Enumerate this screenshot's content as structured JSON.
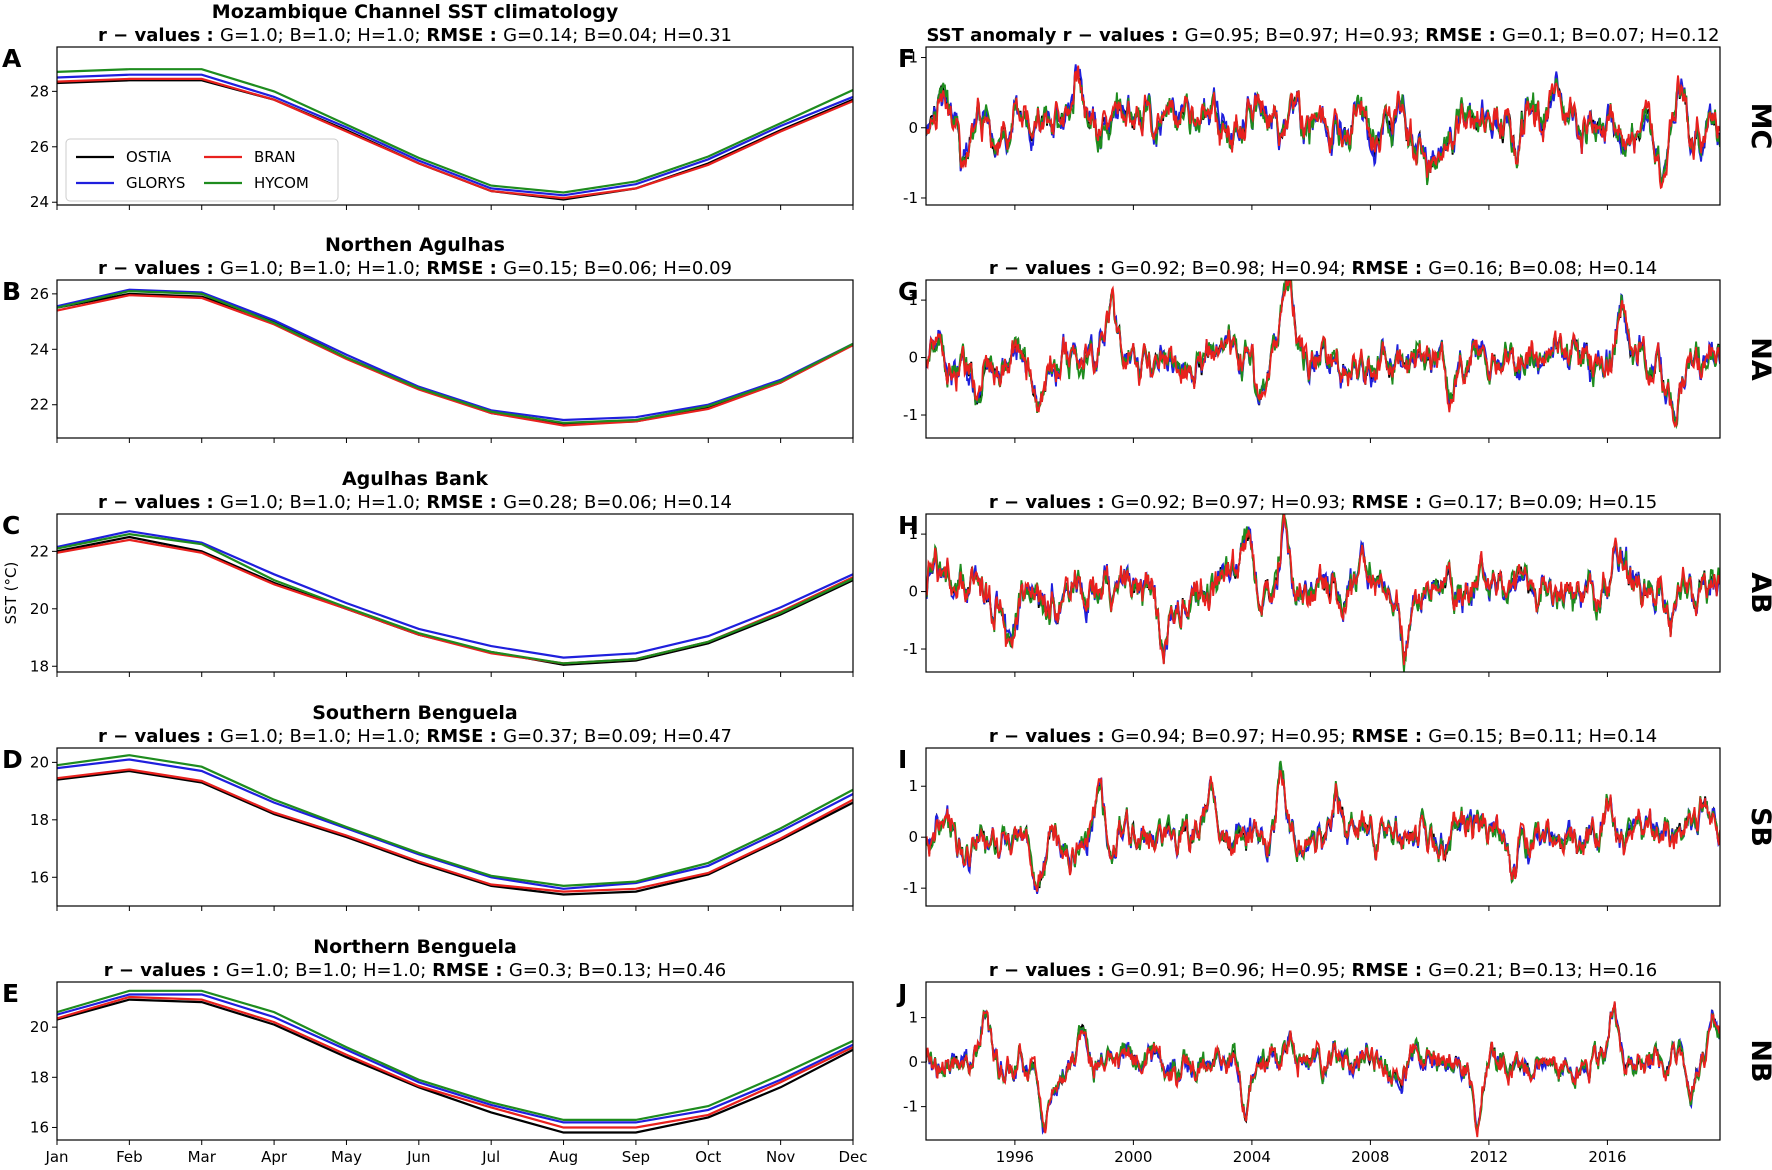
{
  "colors": {
    "OSTIA": "#000000",
    "GLORYS": "#1f1fdd",
    "BRAN": "#e8211e",
    "HYCOM": "#1e8c1e"
  },
  "y_axis_label": "SST (°C)",
  "legend": [
    {
      "name": "OSTIA",
      "color": "#000000"
    },
    {
      "name": "BRAN",
      "color": "#e8211e"
    },
    {
      "name": "GLORYS",
      "color": "#1f1fdd"
    },
    {
      "name": "HYCOM",
      "color": "#1e8c1e"
    }
  ],
  "chart_data": [
    {
      "type": "line",
      "letter": "A",
      "title": "Mozambique Channel SST climatology",
      "stats": {
        "r_label": "r − values :",
        "r_text": "G=1.0; B=1.0; H=1.0;",
        "rmse_label": "RMSE :",
        "rmse_text": "G=0.14; B=0.04; H=0.31"
      },
      "categories": [
        "Jan",
        "Feb",
        "Mar",
        "Apr",
        "May",
        "Jun",
        "Jul",
        "Aug",
        "Sep",
        "Oct",
        "Nov",
        "Dec"
      ],
      "ylim": [
        23.9,
        29.6
      ],
      "yticks": [
        24,
        26,
        28
      ],
      "series": [
        {
          "name": "OSTIA",
          "values": [
            28.3,
            28.4,
            28.4,
            27.7,
            26.6,
            25.4,
            24.4,
            24.1,
            24.5,
            25.4,
            26.6,
            27.7
          ]
        },
        {
          "name": "BRAN",
          "values": [
            28.35,
            28.45,
            28.45,
            27.7,
            26.55,
            25.4,
            24.4,
            24.15,
            24.5,
            25.35,
            26.55,
            27.65
          ]
        },
        {
          "name": "GLORYS",
          "values": [
            28.5,
            28.6,
            28.6,
            27.8,
            26.7,
            25.5,
            24.5,
            24.25,
            24.65,
            25.55,
            26.75,
            27.8
          ]
        },
        {
          "name": "HYCOM",
          "values": [
            28.7,
            28.8,
            28.8,
            28.0,
            26.8,
            25.6,
            24.6,
            24.35,
            24.75,
            25.65,
            26.85,
            28.05
          ]
        }
      ]
    },
    {
      "type": "line",
      "letter": "B",
      "title": "Northen Agulhas",
      "stats": {
        "r_label": "r − values :",
        "r_text": "G=1.0; B=1.0; H=1.0;",
        "rmse_label": "RMSE :",
        "rmse_text": "G=0.15; B=0.06; H=0.09"
      },
      "categories": [
        "Jan",
        "Feb",
        "Mar",
        "Apr",
        "May",
        "Jun",
        "Jul",
        "Aug",
        "Sep",
        "Oct",
        "Nov",
        "Dec"
      ],
      "ylim": [
        20.8,
        26.5
      ],
      "yticks": [
        22,
        24,
        26
      ],
      "series": [
        {
          "name": "OSTIA",
          "values": [
            25.5,
            26.0,
            25.9,
            25.0,
            23.7,
            22.6,
            21.7,
            21.3,
            21.4,
            21.9,
            22.8,
            24.2
          ]
        },
        {
          "name": "BRAN",
          "values": [
            25.4,
            25.95,
            25.85,
            24.9,
            23.65,
            22.55,
            21.7,
            21.25,
            21.4,
            21.85,
            22.8,
            24.15
          ]
        },
        {
          "name": "GLORYS",
          "values": [
            25.55,
            26.15,
            26.05,
            25.05,
            23.8,
            22.65,
            21.8,
            21.45,
            21.55,
            22.0,
            22.9,
            24.2
          ]
        },
        {
          "name": "HYCOM",
          "values": [
            25.5,
            26.1,
            26.0,
            24.95,
            23.7,
            22.6,
            21.75,
            21.35,
            21.45,
            21.95,
            22.85,
            24.2
          ]
        }
      ]
    },
    {
      "type": "line",
      "letter": "C",
      "title": "Agulhas Bank",
      "stats": {
        "r_label": "r − values :",
        "r_text": "G=1.0; B=1.0; H=1.0;",
        "rmse_label": "RMSE :",
        "rmse_text": "G=0.28; B=0.06; H=0.14"
      },
      "categories": [
        "Jan",
        "Feb",
        "Mar",
        "Apr",
        "May",
        "Jun",
        "Jul",
        "Aug",
        "Sep",
        "Oct",
        "Nov",
        "Dec"
      ],
      "ylim": [
        17.8,
        23.3
      ],
      "yticks": [
        18,
        20,
        22
      ],
      "series": [
        {
          "name": "OSTIA",
          "values": [
            22.0,
            22.5,
            22.0,
            20.9,
            20.0,
            19.1,
            18.5,
            18.05,
            18.2,
            18.8,
            19.8,
            21.0
          ]
        },
        {
          "name": "BRAN",
          "values": [
            21.95,
            22.4,
            21.95,
            20.85,
            20.0,
            19.1,
            18.45,
            18.1,
            18.25,
            18.85,
            19.9,
            21.1
          ]
        },
        {
          "name": "GLORYS",
          "values": [
            22.15,
            22.7,
            22.3,
            21.2,
            20.2,
            19.3,
            18.7,
            18.3,
            18.45,
            19.05,
            20.05,
            21.2
          ]
        },
        {
          "name": "HYCOM",
          "values": [
            22.1,
            22.6,
            22.25,
            21.0,
            20.05,
            19.15,
            18.5,
            18.1,
            18.25,
            18.85,
            19.85,
            21.05
          ]
        }
      ]
    },
    {
      "type": "line",
      "letter": "D",
      "title": "Southern Benguela",
      "stats": {
        "r_label": "r − values :",
        "r_text": "G=1.0; B=1.0; H=1.0;",
        "rmse_label": "RMSE :",
        "rmse_text": "G=0.37; B=0.09; H=0.47"
      },
      "categories": [
        "Jan",
        "Feb",
        "Mar",
        "Apr",
        "May",
        "Jun",
        "Jul",
        "Aug",
        "Sep",
        "Oct",
        "Nov",
        "Dec"
      ],
      "ylim": [
        15.0,
        20.5
      ],
      "yticks": [
        16,
        18,
        20
      ],
      "series": [
        {
          "name": "OSTIA",
          "values": [
            19.4,
            19.7,
            19.3,
            18.2,
            17.4,
            16.5,
            15.7,
            15.4,
            15.5,
            16.1,
            17.3,
            18.6
          ]
        },
        {
          "name": "BRAN",
          "values": [
            19.45,
            19.75,
            19.35,
            18.25,
            17.45,
            16.55,
            15.75,
            15.5,
            15.6,
            16.15,
            17.35,
            18.7
          ]
        },
        {
          "name": "GLORYS",
          "values": [
            19.8,
            20.1,
            19.7,
            18.6,
            17.7,
            16.8,
            16.0,
            15.6,
            15.8,
            16.4,
            17.6,
            18.9
          ]
        },
        {
          "name": "HYCOM",
          "values": [
            19.9,
            20.25,
            19.85,
            18.7,
            17.75,
            16.85,
            16.05,
            15.7,
            15.85,
            16.5,
            17.7,
            19.05
          ]
        }
      ]
    },
    {
      "type": "line",
      "letter": "E",
      "title": "Northern Benguela",
      "stats": {
        "r_label": "r − values :",
        "r_text": "G=1.0; B=1.0; H=1.0;",
        "rmse_label": "RMSE :",
        "rmse_text": "G=0.3; B=0.13; H=0.46"
      },
      "categories": [
        "Jan",
        "Feb",
        "Mar",
        "Apr",
        "May",
        "Jun",
        "Jul",
        "Aug",
        "Sep",
        "Oct",
        "Nov",
        "Dec"
      ],
      "ylim": [
        15.5,
        21.8
      ],
      "yticks": [
        16,
        18,
        20
      ],
      "series": [
        {
          "name": "OSTIA",
          "values": [
            20.3,
            21.1,
            21.0,
            20.1,
            18.8,
            17.6,
            16.6,
            15.8,
            15.8,
            16.4,
            17.6,
            19.1
          ]
        },
        {
          "name": "BRAN",
          "values": [
            20.35,
            21.2,
            21.1,
            20.2,
            18.9,
            17.65,
            16.8,
            16.0,
            16.0,
            16.5,
            17.8,
            19.2
          ]
        },
        {
          "name": "GLORYS",
          "values": [
            20.5,
            21.3,
            21.3,
            20.4,
            19.1,
            17.8,
            16.9,
            16.2,
            16.2,
            16.7,
            17.9,
            19.3
          ]
        },
        {
          "name": "HYCOM",
          "values": [
            20.6,
            21.45,
            21.45,
            20.6,
            19.2,
            17.9,
            17.0,
            16.3,
            16.3,
            16.85,
            18.1,
            19.45
          ]
        }
      ]
    },
    {
      "type": "line",
      "letter": "F",
      "region": "MC",
      "title_bold": "SST anomaly r − values :",
      "stats": {
        "r_text": "G=0.95; B=0.97; H=0.93;",
        "rmse_label": "RMSE :",
        "rmse_text": "G=0.1; B=0.07; H=0.12"
      },
      "xlim": [
        1993.0,
        2019.8
      ],
      "xticks": [
        1996,
        2000,
        2004,
        2008,
        2012,
        2016
      ],
      "ylim": [
        -1.1,
        1.15
      ],
      "yticks": [
        -1,
        0,
        1
      ],
      "seed": 11,
      "amp": 0.32,
      "events": [
        [
          1993.5,
          0.55
        ],
        [
          1994.3,
          -0.7
        ],
        [
          1995.3,
          -0.3
        ],
        [
          1998.1,
          0.6
        ],
        [
          2002.7,
          0.4
        ],
        [
          2009.1,
          0.5
        ],
        [
          2010.0,
          -0.65
        ],
        [
          2011.2,
          0.4
        ],
        [
          2012.9,
          -0.4
        ],
        [
          2014.3,
          0.6
        ],
        [
          2017.8,
          -0.6
        ],
        [
          2018.5,
          0.5
        ]
      ]
    },
    {
      "type": "line",
      "letter": "G",
      "region": "NA",
      "stats": {
        "r_label": "r − values :",
        "r_text": "G=0.92; B=0.98; H=0.94;",
        "rmse_label": "RMSE :",
        "rmse_text": "G=0.16; B=0.08; H=0.14"
      },
      "xlim": [
        1993.0,
        2019.8
      ],
      "xticks": [
        1996,
        2000,
        2004,
        2008,
        2012,
        2016
      ],
      "ylim": [
        -1.4,
        1.35
      ],
      "yticks": [
        -1,
        0,
        1
      ],
      "seed": 23,
      "amp": 0.38,
      "events": [
        [
          1994.7,
          -0.7
        ],
        [
          1996.7,
          -0.75
        ],
        [
          1999.2,
          0.7
        ],
        [
          2004.2,
          -0.8
        ],
        [
          2005.2,
          1.1
        ],
        [
          2010.7,
          -0.7
        ],
        [
          2016.5,
          1.0
        ],
        [
          2018.3,
          -0.8
        ]
      ]
    },
    {
      "type": "line",
      "letter": "H",
      "region": "AB",
      "stats": {
        "r_label": "r − values :",
        "r_text": "G=0.92; B=0.97; H=0.93;",
        "rmse_label": "RMSE :",
        "rmse_text": "G=0.17; B=0.09; H=0.15"
      },
      "xlim": [
        1993.0,
        2019.8
      ],
      "xticks": [
        1996,
        2000,
        2004,
        2008,
        2012,
        2016
      ],
      "ylim": [
        -1.4,
        1.35
      ],
      "yticks": [
        -1,
        0,
        1
      ],
      "seed": 37,
      "amp": 0.4,
      "events": [
        [
          1993.3,
          0.6
        ],
        [
          1995.8,
          -0.9
        ],
        [
          2001.0,
          -1.0
        ],
        [
          2003.8,
          0.8
        ],
        [
          2005.1,
          1.2
        ],
        [
          2009.2,
          -0.9
        ],
        [
          2016.3,
          0.9
        ],
        [
          2018.2,
          -0.6
        ]
      ]
    },
    {
      "type": "line",
      "letter": "I",
      "region": "SB",
      "stats": {
        "r_label": "r − values :",
        "r_text": "G=0.94; B=0.97; H=0.95;",
        "rmse_label": "RMSE :",
        "rmse_text": "G=0.15; B=0.11; H=0.14"
      },
      "xlim": [
        1993.0,
        2019.8
      ],
      "xticks": [
        1996,
        2000,
        2004,
        2008,
        2012,
        2016
      ],
      "ylim": [
        -1.35,
        1.75
      ],
      "yticks": [
        -1,
        0,
        1
      ],
      "seed": 51,
      "amp": 0.4,
      "events": [
        [
          1994.4,
          -0.8
        ],
        [
          1996.8,
          -1.0
        ],
        [
          1998.8,
          0.8
        ],
        [
          2002.6,
          0.9
        ],
        [
          2005.0,
          1.5
        ],
        [
          2006.9,
          0.9
        ],
        [
          2012.8,
          -0.6
        ],
        [
          2016.1,
          0.8
        ],
        [
          2019.3,
          0.8
        ]
      ]
    },
    {
      "type": "line",
      "letter": "J",
      "region": "NB",
      "stats": {
        "r_label": "r − values :",
        "r_text": "G=0.91; B=0.96; H=0.95;",
        "rmse_label": "RMSE :",
        "rmse_text": "G=0.21; B=0.13; H=0.16"
      },
      "xlim": [
        1993.0,
        2019.8
      ],
      "xticks": [
        1996,
        2000,
        2004,
        2008,
        2012,
        2016
      ],
      "ylim": [
        -1.75,
        1.8
      ],
      "yticks": [
        -1,
        0,
        1
      ],
      "seed": 67,
      "amp": 0.38,
      "events": [
        [
          1995.0,
          1.4
        ],
        [
          1997.0,
          -1.4
        ],
        [
          1998.3,
          0.7
        ],
        [
          2003.8,
          -1.2
        ],
        [
          2005.3,
          0.8
        ],
        [
          2011.6,
          -1.2
        ],
        [
          2016.2,
          1.0
        ],
        [
          2018.8,
          -0.9
        ],
        [
          2019.6,
          1.2
        ]
      ]
    }
  ]
}
